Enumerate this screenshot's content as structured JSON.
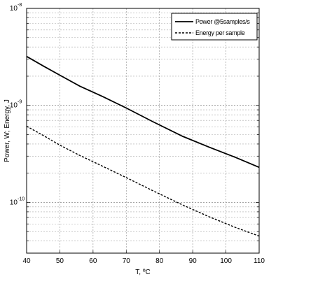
{
  "chart_data": {
    "type": "line",
    "xlabel": "T, ºC",
    "ylabel": "Power, W; Energy, J",
    "xlim": [
      40,
      110
    ],
    "ylim": [
      3e-11,
      1e-08
    ],
    "yscale": "log",
    "grid": true,
    "legend_position": "top-right",
    "x_ticks": [
      40,
      50,
      60,
      70,
      80,
      90,
      100,
      110
    ],
    "y_major_ticks": [
      {
        "value": 1e-10,
        "base": "10",
        "exponent": "-10"
      },
      {
        "value": 1e-09,
        "base": "10",
        "exponent": "-9"
      },
      {
        "value": 1e-08,
        "base": "10",
        "exponent": "-8"
      }
    ],
    "series": [
      {
        "name": "Power @5samples/s",
        "style": "solid",
        "color": "#000000",
        "x": [
          40,
          45,
          50,
          56,
          63,
          70,
          78,
          87,
          95,
          103,
          110
        ],
        "y": [
          3.2e-09,
          2.55e-09,
          2.05e-09,
          1.58e-09,
          1.23e-09,
          9.4e-10,
          6.8e-10,
          4.8e-10,
          3.7e-10,
          2.9e-10,
          2.3e-10
        ]
      },
      {
        "name": "Energy per sample",
        "style": "dashed",
        "color": "#000000",
        "x": [
          40,
          45,
          50,
          56,
          63,
          70,
          78,
          87,
          95,
          103,
          110
        ],
        "y": [
          6.1e-10,
          4.9e-10,
          3.9e-10,
          3.05e-10,
          2.35e-10,
          1.8e-10,
          1.32e-10,
          9.4e-11,
          7.1e-11,
          5.5e-11,
          4.5e-11
        ]
      }
    ]
  }
}
